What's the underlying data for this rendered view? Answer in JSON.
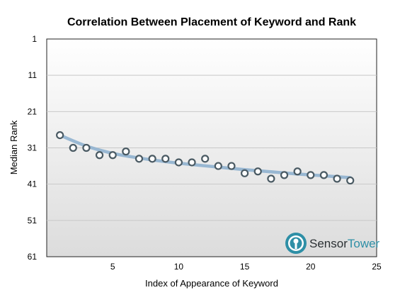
{
  "chart_data": {
    "type": "scatter",
    "title": "Correlation Between Placement of Keyword and Rank",
    "xlabel": "Index of Appearance of Keyword",
    "ylabel": "Median Rank",
    "xlim": [
      0,
      25
    ],
    "ylim": [
      1,
      61
    ],
    "y_inverted": true,
    "xticks": [
      5,
      10,
      15,
      20,
      25
    ],
    "yticks": [
      1,
      11,
      21,
      31,
      41,
      51,
      61
    ],
    "grid": true,
    "series": [
      {
        "x": [
          1,
          2,
          3,
          4,
          5,
          6,
          7,
          8,
          9,
          10,
          11,
          12,
          13,
          14,
          15,
          16,
          17,
          18,
          19,
          20,
          21,
          22,
          23
        ],
        "y": [
          27.5,
          31,
          31,
          33,
          33,
          32,
          34,
          34,
          34,
          35,
          35,
          34,
          36,
          36,
          38,
          37.5,
          39.5,
          38.5,
          37.5,
          38.5,
          38.5,
          39.5,
          40
        ]
      }
    ],
    "trendline": {
      "x": [
        1,
        3,
        5,
        7,
        9,
        11,
        13,
        15,
        17,
        19,
        21,
        23
      ],
      "y": [
        27.5,
        30.5,
        32.5,
        33.8,
        34.8,
        35.6,
        36.3,
        37,
        37.6,
        38.2,
        38.7,
        39.2
      ]
    },
    "colors": {
      "marker_stroke": "#4a5a63",
      "marker_fill": "#ffffff",
      "trend": "#8fb1cf",
      "plot_bg_top": "#ffffff",
      "plot_bg_bottom": "#dcdcdc",
      "grid": "#c8c8c8"
    }
  },
  "logo": {
    "text_part1": "Sensor",
    "text_part2": "Tower",
    "accent_color": "#2e8fa6"
  }
}
